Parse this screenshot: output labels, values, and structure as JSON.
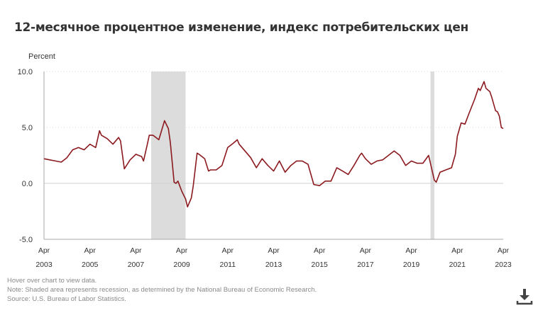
{
  "title": "12-месячное процентное изменение, индекс потребительских цен",
  "footer": {
    "hover": "Hover over chart to view data.",
    "note": "Note: Shaded area represents recession, as determined by the National Bureau of Economic Research.",
    "source": "Source: U.S. Bureau of Labor Statistics."
  },
  "download_icon": "download-icon",
  "chart_data": {
    "type": "line",
    "ylabel": "Percent",
    "ylim": [
      -5,
      10
    ],
    "yticks": [
      "10.0",
      "5.0",
      "0.0",
      "-5.0"
    ],
    "ytick_values": [
      10,
      5,
      0,
      -5
    ],
    "xlim": [
      "2003-04",
      "2023-04"
    ],
    "xticks": [
      {
        "month": "Apr",
        "year": "2003",
        "date": "2003-04"
      },
      {
        "month": "Apr",
        "year": "2005",
        "date": "2005-04"
      },
      {
        "month": "Apr",
        "year": "2007",
        "date": "2007-04"
      },
      {
        "month": "Apr",
        "year": "2009",
        "date": "2009-04"
      },
      {
        "month": "Apr",
        "year": "2011",
        "date": "2011-04"
      },
      {
        "month": "Apr",
        "year": "2013",
        "date": "2013-04"
      },
      {
        "month": "Apr",
        "year": "2015",
        "date": "2015-04"
      },
      {
        "month": "Apr",
        "year": "2017",
        "date": "2017-04"
      },
      {
        "month": "Apr",
        "year": "2019",
        "date": "2019-04"
      },
      {
        "month": "Apr",
        "year": "2021",
        "date": "2021-04"
      },
      {
        "month": "Apr",
        "year": "2023",
        "date": "2023-04"
      }
    ],
    "grid": "horizontal dotted",
    "line_color": "#8b1a1f",
    "recession_color": "#dcdcdc",
    "recessions": [
      [
        "2007-12",
        "2009-06"
      ],
      [
        "2020-02",
        "2020-04"
      ]
    ],
    "series": [
      {
        "points": [
          [
            "2003-04",
            2.2
          ],
          [
            "2003-07",
            2.1
          ],
          [
            "2003-10",
            2.0
          ],
          [
            "2004-01",
            1.9
          ],
          [
            "2004-04",
            2.3
          ],
          [
            "2004-07",
            3.0
          ],
          [
            "2004-10",
            3.2
          ],
          [
            "2005-01",
            3.0
          ],
          [
            "2005-04",
            3.5
          ],
          [
            "2005-07",
            3.2
          ],
          [
            "2005-09",
            4.7
          ],
          [
            "2005-10",
            4.3
          ],
          [
            "2006-01",
            4.0
          ],
          [
            "2006-04",
            3.5
          ],
          [
            "2006-07",
            4.1
          ],
          [
            "2006-08",
            3.8
          ],
          [
            "2006-10",
            1.3
          ],
          [
            "2007-01",
            2.1
          ],
          [
            "2007-04",
            2.6
          ],
          [
            "2007-07",
            2.4
          ],
          [
            "2007-08",
            2.0
          ],
          [
            "2007-10",
            3.5
          ],
          [
            "2007-11",
            4.3
          ],
          [
            "2008-01",
            4.3
          ],
          [
            "2008-04",
            3.9
          ],
          [
            "2008-07",
            5.6
          ],
          [
            "2008-09",
            4.9
          ],
          [
            "2008-10",
            3.7
          ],
          [
            "2008-12",
            0.1
          ],
          [
            "2009-01",
            0.0
          ],
          [
            "2009-02",
            0.2
          ],
          [
            "2009-04",
            -0.7
          ],
          [
            "2009-06",
            -1.4
          ],
          [
            "2009-07",
            -2.1
          ],
          [
            "2009-09",
            -1.3
          ],
          [
            "2009-10",
            -0.2
          ],
          [
            "2009-12",
            2.7
          ],
          [
            "2010-01",
            2.6
          ],
          [
            "2010-04",
            2.2
          ],
          [
            "2010-06",
            1.1
          ],
          [
            "2010-07",
            1.2
          ],
          [
            "2010-10",
            1.2
          ],
          [
            "2011-01",
            1.6
          ],
          [
            "2011-04",
            3.2
          ],
          [
            "2011-07",
            3.6
          ],
          [
            "2011-09",
            3.9
          ],
          [
            "2011-10",
            3.5
          ],
          [
            "2012-01",
            2.9
          ],
          [
            "2012-04",
            2.3
          ],
          [
            "2012-07",
            1.4
          ],
          [
            "2012-10",
            2.2
          ],
          [
            "2013-01",
            1.6
          ],
          [
            "2013-04",
            1.1
          ],
          [
            "2013-07",
            2.0
          ],
          [
            "2013-10",
            1.0
          ],
          [
            "2014-01",
            1.6
          ],
          [
            "2014-04",
            2.0
          ],
          [
            "2014-07",
            2.0
          ],
          [
            "2014-10",
            1.7
          ],
          [
            "2015-01",
            -0.1
          ],
          [
            "2015-04",
            -0.2
          ],
          [
            "2015-07",
            0.2
          ],
          [
            "2015-10",
            0.2
          ],
          [
            "2016-01",
            1.4
          ],
          [
            "2016-04",
            1.1
          ],
          [
            "2016-07",
            0.8
          ],
          [
            "2016-10",
            1.6
          ],
          [
            "2017-01",
            2.5
          ],
          [
            "2017-02",
            2.7
          ],
          [
            "2017-04",
            2.2
          ],
          [
            "2017-07",
            1.7
          ],
          [
            "2017-10",
            2.0
          ],
          [
            "2018-01",
            2.1
          ],
          [
            "2018-04",
            2.5
          ],
          [
            "2018-07",
            2.9
          ],
          [
            "2018-10",
            2.5
          ],
          [
            "2019-01",
            1.6
          ],
          [
            "2019-04",
            2.0
          ],
          [
            "2019-07",
            1.8
          ],
          [
            "2019-10",
            1.8
          ],
          [
            "2020-01",
            2.5
          ],
          [
            "2020-04",
            0.3
          ],
          [
            "2020-05",
            0.1
          ],
          [
            "2020-07",
            1.0
          ],
          [
            "2020-10",
            1.2
          ],
          [
            "2021-01",
            1.4
          ],
          [
            "2021-03",
            2.6
          ],
          [
            "2021-04",
            4.2
          ],
          [
            "2021-06",
            5.4
          ],
          [
            "2021-08",
            5.3
          ],
          [
            "2021-10",
            6.2
          ],
          [
            "2022-01",
            7.5
          ],
          [
            "2022-03",
            8.5
          ],
          [
            "2022-04",
            8.3
          ],
          [
            "2022-06",
            9.1
          ],
          [
            "2022-07",
            8.5
          ],
          [
            "2022-09",
            8.2
          ],
          [
            "2022-10",
            7.7
          ],
          [
            "2022-12",
            6.5
          ],
          [
            "2023-01",
            6.4
          ],
          [
            "2023-02",
            6.0
          ],
          [
            "2023-03",
            5.0
          ],
          [
            "2023-04",
            4.9
          ]
        ]
      }
    ]
  }
}
